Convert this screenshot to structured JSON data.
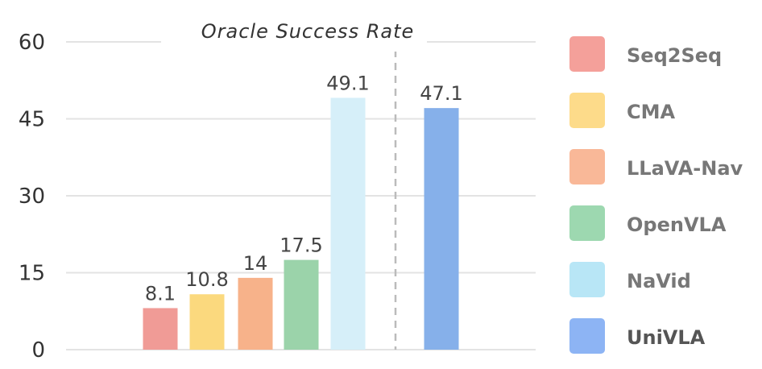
{
  "chart_data": {
    "type": "bar",
    "title": "Oracle Success Rate",
    "xlabel": "",
    "ylabel": "",
    "ylim": [
      0,
      60
    ],
    "yticks": [
      0,
      15,
      30,
      45,
      60
    ],
    "yticks_labels": [
      "0",
      "15",
      "30",
      "45",
      "60"
    ],
    "grid": true,
    "legend_position": "right",
    "categories": [
      "Seq2Seq",
      "CMA",
      "LLaVA-Nav",
      "OpenVLA",
      "NaVid",
      "UniVLA"
    ],
    "values": [
      8.1,
      10.8,
      14,
      17.5,
      49.1,
      47.1
    ],
    "value_labels": [
      "8.1",
      "10.8",
      "14",
      "17.5",
      "49.1",
      "47.1"
    ],
    "colors": [
      "#f09b96",
      "#fbd97e",
      "#f7b28a",
      "#9bd3aa",
      "#d6eff9",
      "#86b0ea"
    ],
    "legend_colors": [
      "#f4a09a",
      "#fddb8a",
      "#f9b898",
      "#9dd8b0",
      "#b8e6f6",
      "#8db4f4"
    ],
    "highlight_category": "UniVLA",
    "separator_after_index": 4
  }
}
